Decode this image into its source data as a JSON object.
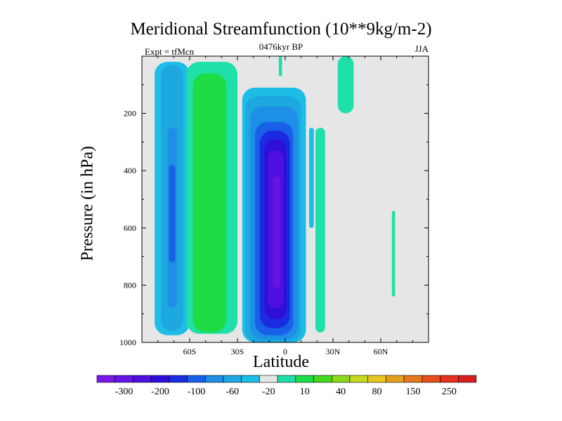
{
  "chart_data": {
    "type": "heatmap",
    "title": "Meridional Streamfunction (10**9kg/m-2)",
    "subtitle_left": "Expt = tfMcn",
    "subtitle_center": "0476kyr BP",
    "subtitle_right": "JJA",
    "xlabel": "Latitude",
    "ylabel": "Pressure (in hPa)",
    "xlim": [
      -90,
      90
    ],
    "ylim": [
      1000,
      0
    ],
    "y_inverted": true,
    "grid": false,
    "background": "#e6e6e6",
    "xticks": [
      {
        "value": -60,
        "label": "60S"
      },
      {
        "value": -30,
        "label": "30S"
      },
      {
        "value": 0,
        "label": "0"
      },
      {
        "value": 30,
        "label": "30N"
      },
      {
        "value": 60,
        "label": "60N"
      }
    ],
    "yticks": [
      {
        "value": 200,
        "label": "200"
      },
      {
        "value": 400,
        "label": "400"
      },
      {
        "value": 600,
        "label": "600"
      },
      {
        "value": 800,
        "label": "800"
      },
      {
        "value": 1000,
        "label": "1000"
      }
    ],
    "colorbar": {
      "placement": "bottom",
      "bins": [
        "#7b16e8",
        "#6514e6",
        "#4d10e0",
        "#2e0fd9",
        "#1b2be0",
        "#1960e8",
        "#1e8fe6",
        "#1ea8e0",
        "#1ebde6",
        "#e6e6e6",
        "#1ee0a8",
        "#1edc46",
        "#46d81e",
        "#8cd81e",
        "#c8d81e",
        "#e6c81e",
        "#e6a01e",
        "#e6781e",
        "#e6501e",
        "#e6321e",
        "#d81e1e"
      ],
      "labels": [
        {
          "text": "-300",
          "index": 1
        },
        {
          "text": "-200",
          "index": 3
        },
        {
          "text": "-100",
          "index": 5
        },
        {
          "text": "-60",
          "index": 7
        },
        {
          "text": "-20",
          "index": 9
        },
        {
          "text": "10",
          "index": 11
        },
        {
          "text": "40",
          "index": 13
        },
        {
          "text": "80",
          "index": 15
        },
        {
          "text": "150",
          "index": 17
        },
        {
          "text": "250",
          "index": 19
        }
      ]
    },
    "features": [
      {
        "name": "sh-cell-outer",
        "lat": [
          -82,
          -60
        ],
        "p": [
          20,
          975
        ],
        "value": -20,
        "color": "#1ebde6"
      },
      {
        "name": "sh-cell-mid",
        "lat": [
          -78,
          -64
        ],
        "p": [
          30,
          960
        ],
        "value": -40,
        "color": "#1ea8e0"
      },
      {
        "name": "sh-cell-inner",
        "lat": [
          -74,
          -68
        ],
        "p": [
          250,
          880
        ],
        "value": -60,
        "color": "#1e8fe6"
      },
      {
        "name": "sh-cell-core",
        "lat": [
          -73,
          -69
        ],
        "p": [
          380,
          720
        ],
        "value": -80,
        "color": "#1960e8"
      },
      {
        "name": "sh-positive-outer",
        "lat": [
          -62,
          -30
        ],
        "p": [
          20,
          970
        ],
        "value": 10,
        "color": "#1ee0a8"
      },
      {
        "name": "sh-positive-core",
        "lat": [
          -58,
          -37
        ],
        "p": [
          60,
          965
        ],
        "value": 20,
        "color": "#1edc46"
      },
      {
        "name": "hadley-outer",
        "lat": [
          -27,
          13
        ],
        "p": [
          110,
          1000
        ],
        "value": -20,
        "color": "#1ebde6"
      },
      {
        "name": "hadley-2",
        "lat": [
          -25,
          10
        ],
        "p": [
          140,
          1000
        ],
        "value": -40,
        "color": "#1ea8e0"
      },
      {
        "name": "hadley-3",
        "lat": [
          -22,
          8
        ],
        "p": [
          175,
          990
        ],
        "value": -60,
        "color": "#1e8fe6"
      },
      {
        "name": "hadley-4",
        "lat": [
          -19,
          5
        ],
        "p": [
          230,
          975
        ],
        "value": -80,
        "color": "#1960e8"
      },
      {
        "name": "hadley-5",
        "lat": [
          -16,
          3
        ],
        "p": [
          260,
          950
        ],
        "value": -100,
        "color": "#1b2be0"
      },
      {
        "name": "hadley-6",
        "lat": [
          -13,
          1
        ],
        "p": [
          290,
          920
        ],
        "value": -150,
        "color": "#2e0fd9"
      },
      {
        "name": "hadley-7",
        "lat": [
          -11,
          -1
        ],
        "p": [
          330,
          880
        ],
        "value": -200,
        "color": "#4d10e0"
      },
      {
        "name": "hadley-core",
        "lat": [
          -8,
          -3
        ],
        "p": [
          420,
          810
        ],
        "value": -250,
        "color": "#6514e6"
      },
      {
        "name": "nh-positive-band",
        "lat": [
          19,
          25
        ],
        "p": [
          250,
          965
        ],
        "value": 10,
        "color": "#1ee0a8"
      },
      {
        "name": "nh-negative-sliver",
        "lat": [
          15,
          18
        ],
        "p": [
          250,
          600
        ],
        "value": -20,
        "color": "#1ebde6"
      },
      {
        "name": "nh-upper-positive",
        "lat": [
          33,
          43
        ],
        "p": [
          0,
          200
        ],
        "value": 10,
        "color": "#1ee0a8"
      },
      {
        "name": "equator-upper-positive",
        "lat": [
          -4,
          -2
        ],
        "p": [
          0,
          70
        ],
        "value": 10,
        "color": "#1ee0a8"
      },
      {
        "name": "nh-mid-positive",
        "lat": [
          67,
          69
        ],
        "p": [
          540,
          840
        ],
        "value": 10,
        "color": "#1ee0a8"
      }
    ]
  }
}
